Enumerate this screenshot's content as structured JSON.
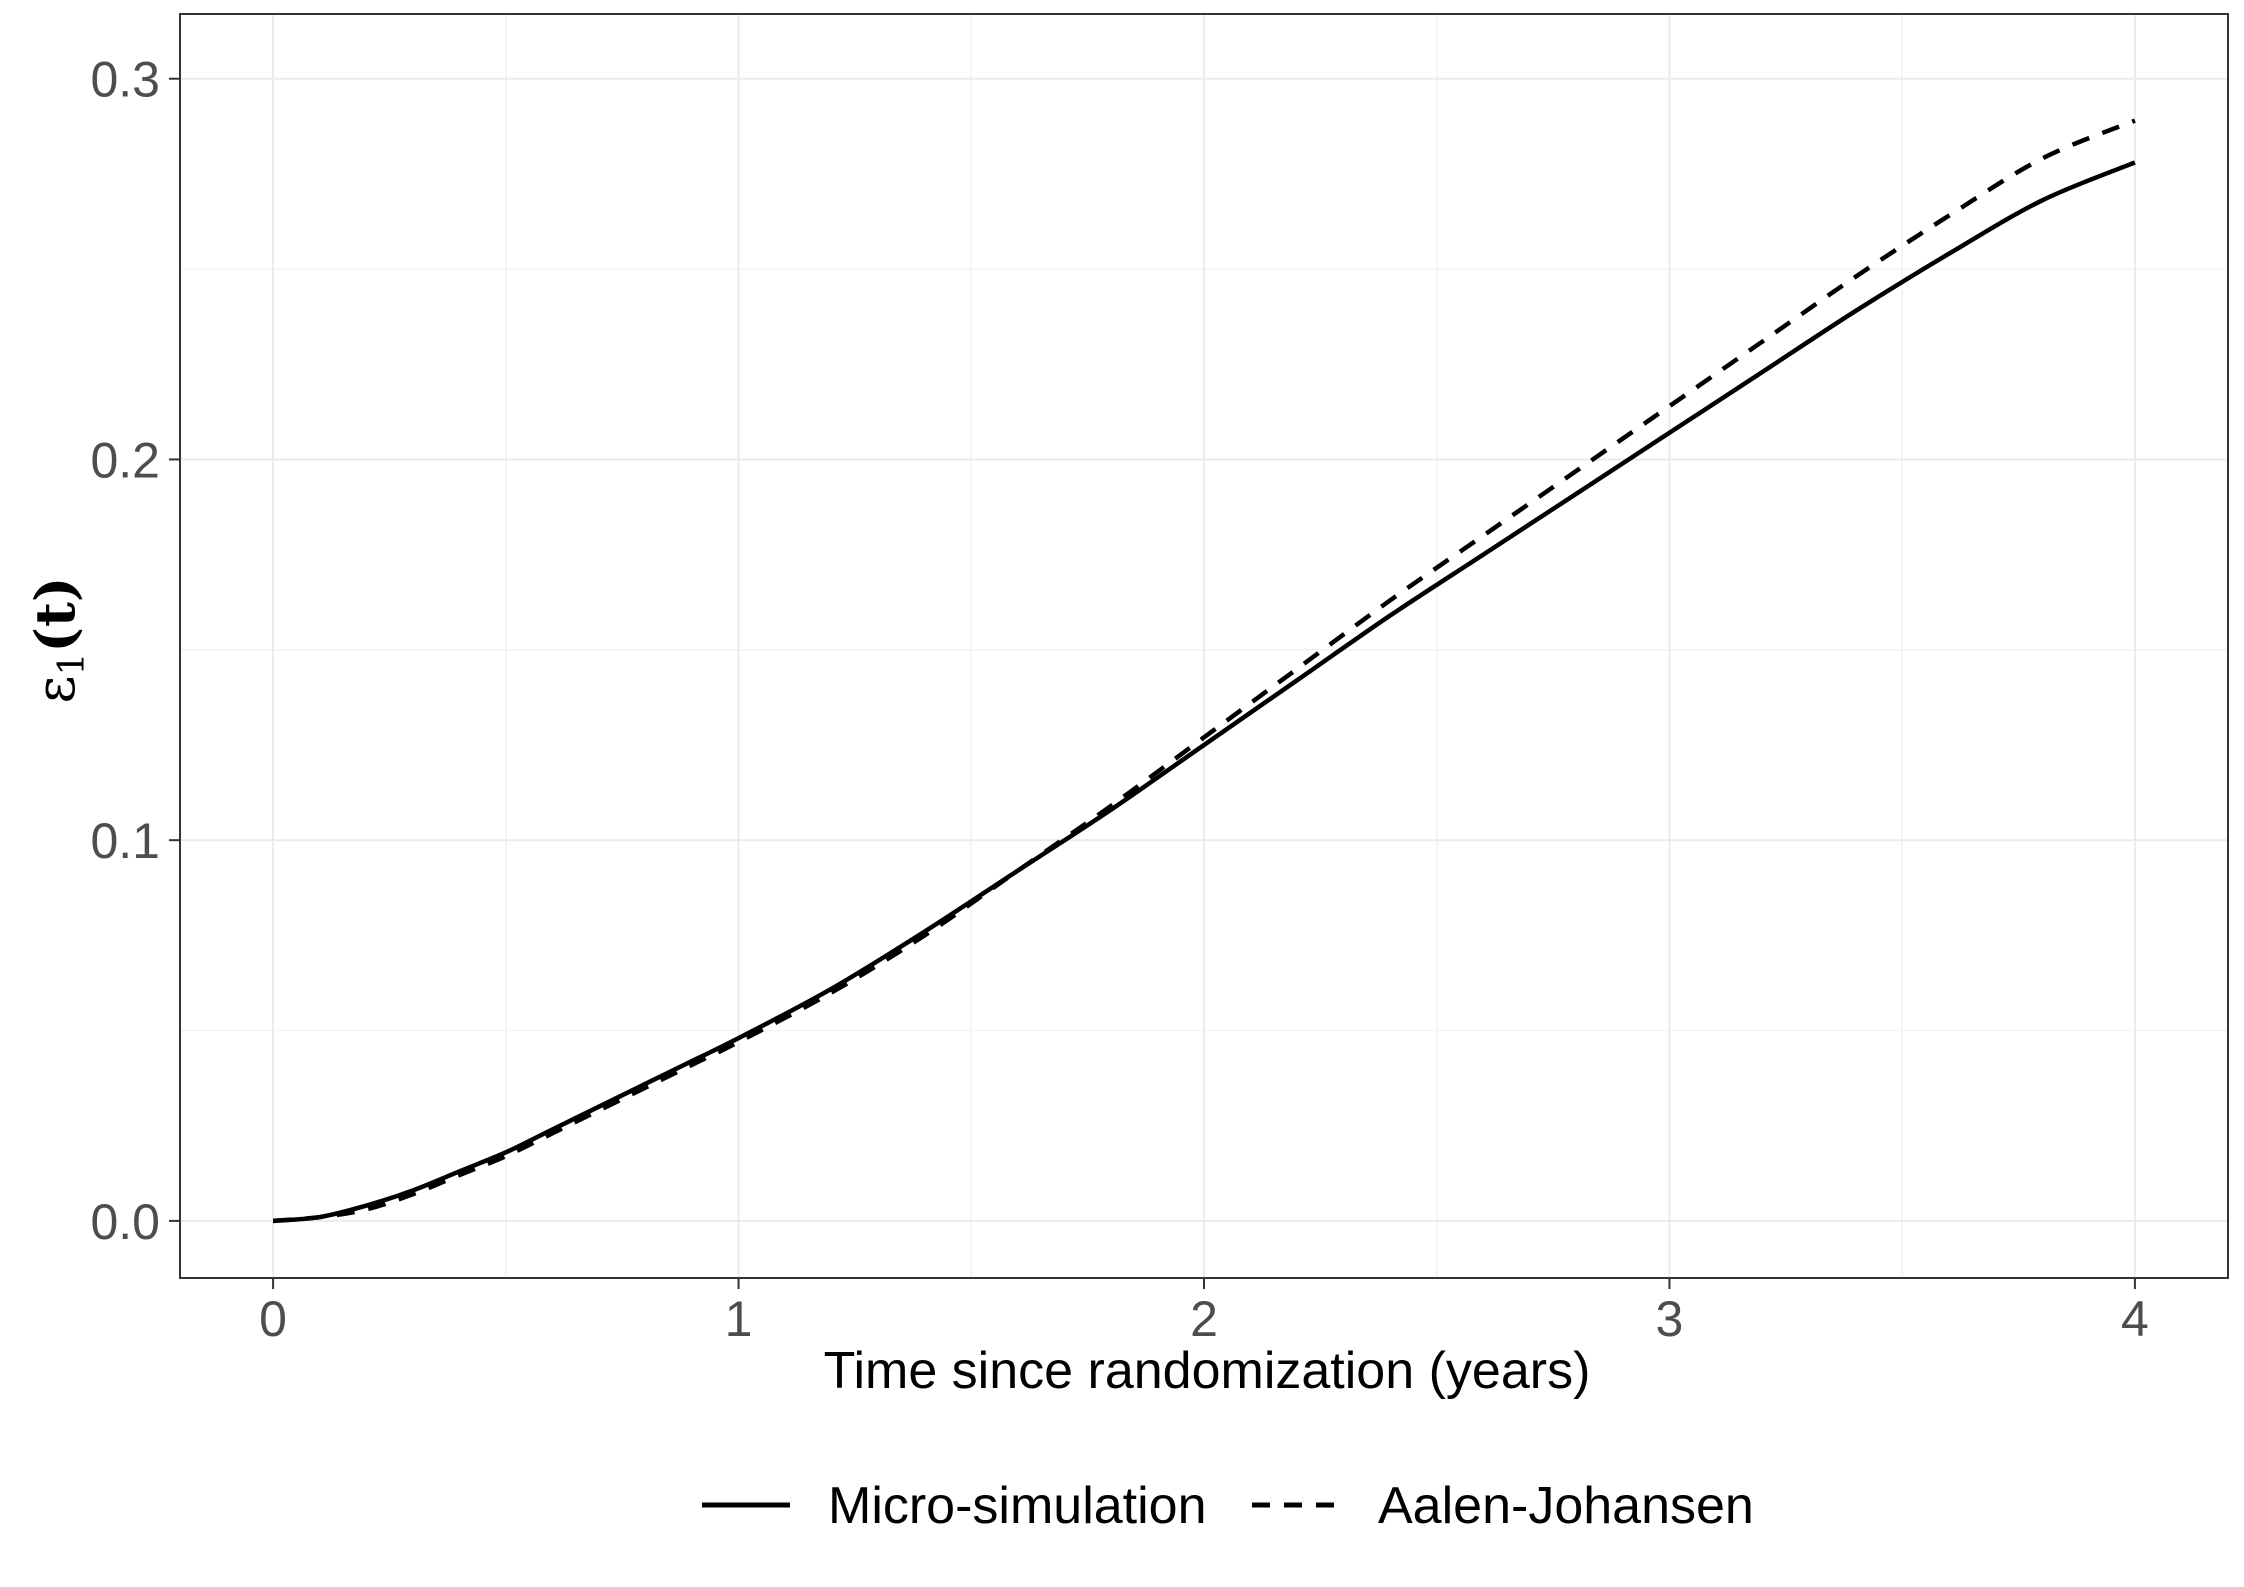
{
  "chart_data": {
    "type": "line",
    "title": "",
    "xlabel": "Time since randomization (years)",
    "ylabel": {
      "symbol": "ε",
      "subscript": "1",
      "argument": "(t)"
    },
    "xlim": [
      -0.2,
      4.2
    ],
    "ylim": [
      -0.015,
      0.317
    ],
    "x_ticks": [
      0,
      1,
      2,
      3,
      4
    ],
    "x_tick_labels": [
      "0",
      "1",
      "2",
      "3",
      "4"
    ],
    "y_ticks": [
      0.0,
      0.1,
      0.2,
      0.3
    ],
    "y_tick_labels": [
      "0.0",
      "0.1",
      "0.2",
      "0.3"
    ],
    "grid": true,
    "legend_position": "bottom",
    "series": [
      {
        "name": "Micro-simulation",
        "line_style": "solid",
        "color": "#000000",
        "x": [
          0,
          0.1,
          0.2,
          0.3,
          0.4,
          0.5,
          0.6,
          0.7,
          0.8,
          0.9,
          1.0,
          1.2,
          1.4,
          1.6,
          1.8,
          2.0,
          2.2,
          2.4,
          2.6,
          2.8,
          3.0,
          3.2,
          3.4,
          3.6,
          3.8,
          4.0
        ],
        "y": [
          0.0,
          0.001,
          0.004,
          0.008,
          0.013,
          0.018,
          0.024,
          0.03,
          0.036,
          0.042,
          0.048,
          0.061,
          0.076,
          0.092,
          0.108,
          0.125,
          0.142,
          0.159,
          0.175,
          0.191,
          0.207,
          0.223,
          0.239,
          0.254,
          0.268,
          0.278
        ]
      },
      {
        "name": "Aalen-Johansen",
        "line_style": "dashed",
        "color": "#000000",
        "x": [
          0,
          0.1,
          0.2,
          0.3,
          0.4,
          0.5,
          0.6,
          0.7,
          0.8,
          0.9,
          1.0,
          1.2,
          1.4,
          1.6,
          1.8,
          2.0,
          2.2,
          2.4,
          2.6,
          2.8,
          3.0,
          3.2,
          3.4,
          3.6,
          3.8,
          4.0
        ],
        "y": [
          0.0,
          0.001,
          0.003,
          0.007,
          0.012,
          0.017,
          0.023,
          0.029,
          0.035,
          0.041,
          0.047,
          0.06,
          0.075,
          0.092,
          0.109,
          0.127,
          0.145,
          0.163,
          0.18,
          0.197,
          0.214,
          0.231,
          0.248,
          0.264,
          0.279,
          0.289
        ]
      }
    ]
  }
}
